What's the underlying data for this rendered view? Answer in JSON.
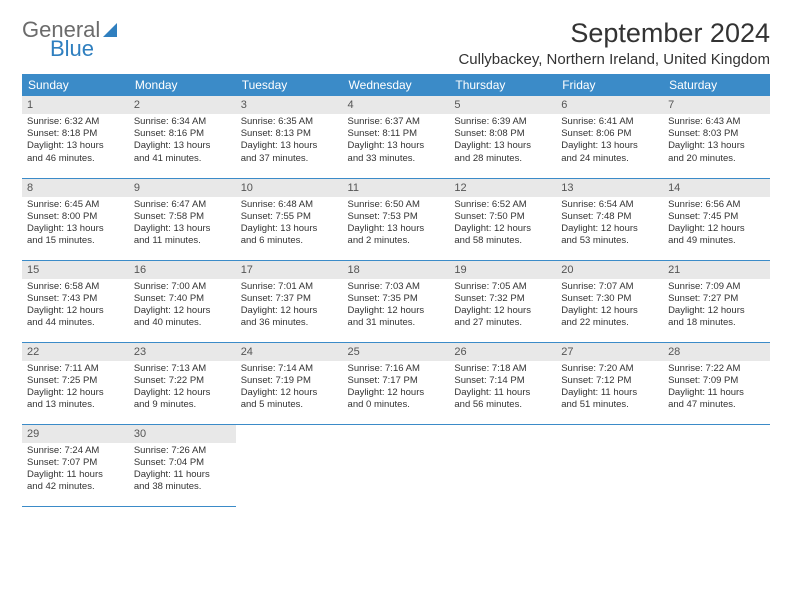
{
  "brand": {
    "general": "General",
    "blue": "Blue"
  },
  "title": "September 2024",
  "location": "Cullybackey, Northern Ireland, United Kingdom",
  "colors": {
    "header_bg": "#3b8bc8",
    "header_text": "#ffffff",
    "daynum_bg": "#e8e8e8",
    "border": "#3b8bc8",
    "logo_blue": "#2f7fbf"
  },
  "fonts": {
    "title_pt": 27,
    "location_pt": 15,
    "th_pt": 12,
    "cell_pt": 9.5,
    "daynum_pt": 11
  },
  "weekdays": [
    "Sunday",
    "Monday",
    "Tuesday",
    "Wednesday",
    "Thursday",
    "Friday",
    "Saturday"
  ],
  "days": [
    {
      "n": "1",
      "sr": "Sunrise: 6:32 AM",
      "ss": "Sunset: 8:18 PM",
      "d1": "Daylight: 13 hours",
      "d2": "and 46 minutes."
    },
    {
      "n": "2",
      "sr": "Sunrise: 6:34 AM",
      "ss": "Sunset: 8:16 PM",
      "d1": "Daylight: 13 hours",
      "d2": "and 41 minutes."
    },
    {
      "n": "3",
      "sr": "Sunrise: 6:35 AM",
      "ss": "Sunset: 8:13 PM",
      "d1": "Daylight: 13 hours",
      "d2": "and 37 minutes."
    },
    {
      "n": "4",
      "sr": "Sunrise: 6:37 AM",
      "ss": "Sunset: 8:11 PM",
      "d1": "Daylight: 13 hours",
      "d2": "and 33 minutes."
    },
    {
      "n": "5",
      "sr": "Sunrise: 6:39 AM",
      "ss": "Sunset: 8:08 PM",
      "d1": "Daylight: 13 hours",
      "d2": "and 28 minutes."
    },
    {
      "n": "6",
      "sr": "Sunrise: 6:41 AM",
      "ss": "Sunset: 8:06 PM",
      "d1": "Daylight: 13 hours",
      "d2": "and 24 minutes."
    },
    {
      "n": "7",
      "sr": "Sunrise: 6:43 AM",
      "ss": "Sunset: 8:03 PM",
      "d1": "Daylight: 13 hours",
      "d2": "and 20 minutes."
    },
    {
      "n": "8",
      "sr": "Sunrise: 6:45 AM",
      "ss": "Sunset: 8:00 PM",
      "d1": "Daylight: 13 hours",
      "d2": "and 15 minutes."
    },
    {
      "n": "9",
      "sr": "Sunrise: 6:47 AM",
      "ss": "Sunset: 7:58 PM",
      "d1": "Daylight: 13 hours",
      "d2": "and 11 minutes."
    },
    {
      "n": "10",
      "sr": "Sunrise: 6:48 AM",
      "ss": "Sunset: 7:55 PM",
      "d1": "Daylight: 13 hours",
      "d2": "and 6 minutes."
    },
    {
      "n": "11",
      "sr": "Sunrise: 6:50 AM",
      "ss": "Sunset: 7:53 PM",
      "d1": "Daylight: 13 hours",
      "d2": "and 2 minutes."
    },
    {
      "n": "12",
      "sr": "Sunrise: 6:52 AM",
      "ss": "Sunset: 7:50 PM",
      "d1": "Daylight: 12 hours",
      "d2": "and 58 minutes."
    },
    {
      "n": "13",
      "sr": "Sunrise: 6:54 AM",
      "ss": "Sunset: 7:48 PM",
      "d1": "Daylight: 12 hours",
      "d2": "and 53 minutes."
    },
    {
      "n": "14",
      "sr": "Sunrise: 6:56 AM",
      "ss": "Sunset: 7:45 PM",
      "d1": "Daylight: 12 hours",
      "d2": "and 49 minutes."
    },
    {
      "n": "15",
      "sr": "Sunrise: 6:58 AM",
      "ss": "Sunset: 7:43 PM",
      "d1": "Daylight: 12 hours",
      "d2": "and 44 minutes."
    },
    {
      "n": "16",
      "sr": "Sunrise: 7:00 AM",
      "ss": "Sunset: 7:40 PM",
      "d1": "Daylight: 12 hours",
      "d2": "and 40 minutes."
    },
    {
      "n": "17",
      "sr": "Sunrise: 7:01 AM",
      "ss": "Sunset: 7:37 PM",
      "d1": "Daylight: 12 hours",
      "d2": "and 36 minutes."
    },
    {
      "n": "18",
      "sr": "Sunrise: 7:03 AM",
      "ss": "Sunset: 7:35 PM",
      "d1": "Daylight: 12 hours",
      "d2": "and 31 minutes."
    },
    {
      "n": "19",
      "sr": "Sunrise: 7:05 AM",
      "ss": "Sunset: 7:32 PM",
      "d1": "Daylight: 12 hours",
      "d2": "and 27 minutes."
    },
    {
      "n": "20",
      "sr": "Sunrise: 7:07 AM",
      "ss": "Sunset: 7:30 PM",
      "d1": "Daylight: 12 hours",
      "d2": "and 22 minutes."
    },
    {
      "n": "21",
      "sr": "Sunrise: 7:09 AM",
      "ss": "Sunset: 7:27 PM",
      "d1": "Daylight: 12 hours",
      "d2": "and 18 minutes."
    },
    {
      "n": "22",
      "sr": "Sunrise: 7:11 AM",
      "ss": "Sunset: 7:25 PM",
      "d1": "Daylight: 12 hours",
      "d2": "and 13 minutes."
    },
    {
      "n": "23",
      "sr": "Sunrise: 7:13 AM",
      "ss": "Sunset: 7:22 PM",
      "d1": "Daylight: 12 hours",
      "d2": "and 9 minutes."
    },
    {
      "n": "24",
      "sr": "Sunrise: 7:14 AM",
      "ss": "Sunset: 7:19 PM",
      "d1": "Daylight: 12 hours",
      "d2": "and 5 minutes."
    },
    {
      "n": "25",
      "sr": "Sunrise: 7:16 AM",
      "ss": "Sunset: 7:17 PM",
      "d1": "Daylight: 12 hours",
      "d2": "and 0 minutes."
    },
    {
      "n": "26",
      "sr": "Sunrise: 7:18 AM",
      "ss": "Sunset: 7:14 PM",
      "d1": "Daylight: 11 hours",
      "d2": "and 56 minutes."
    },
    {
      "n": "27",
      "sr": "Sunrise: 7:20 AM",
      "ss": "Sunset: 7:12 PM",
      "d1": "Daylight: 11 hours",
      "d2": "and 51 minutes."
    },
    {
      "n": "28",
      "sr": "Sunrise: 7:22 AM",
      "ss": "Sunset: 7:09 PM",
      "d1": "Daylight: 11 hours",
      "d2": "and 47 minutes."
    },
    {
      "n": "29",
      "sr": "Sunrise: 7:24 AM",
      "ss": "Sunset: 7:07 PM",
      "d1": "Daylight: 11 hours",
      "d2": "and 42 minutes."
    },
    {
      "n": "30",
      "sr": "Sunrise: 7:26 AM",
      "ss": "Sunset: 7:04 PM",
      "d1": "Daylight: 11 hours",
      "d2": "and 38 minutes."
    }
  ]
}
